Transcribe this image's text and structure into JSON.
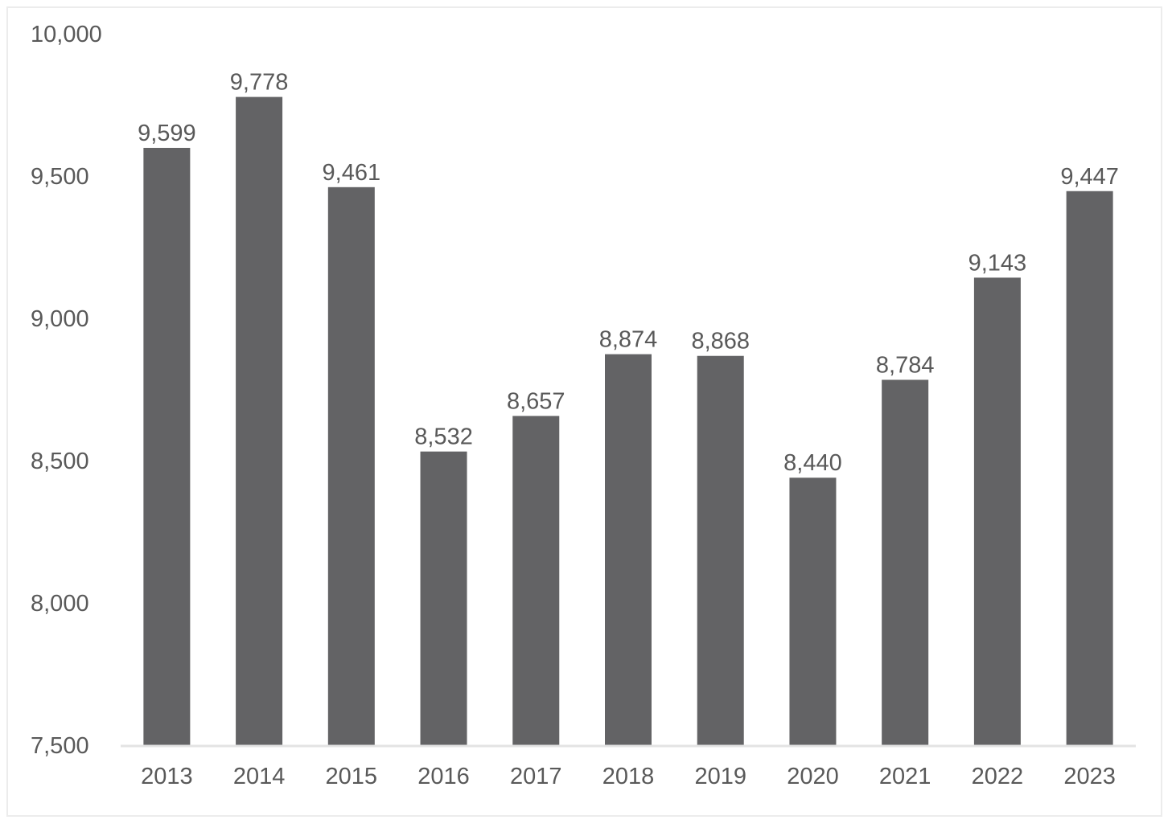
{
  "chart_data": {
    "type": "bar",
    "title": "",
    "xlabel": "",
    "ylabel": "",
    "categories": [
      "2013",
      "2014",
      "2015",
      "2016",
      "2017",
      "2018",
      "2019",
      "2020",
      "2021",
      "2022",
      "2023"
    ],
    "values": [
      9599,
      9778,
      9461,
      8532,
      8657,
      8874,
      8868,
      8440,
      8784,
      9143,
      9447
    ],
    "data_labels": [
      "9,599",
      "9,778",
      "9,461",
      "8,532",
      "8,657",
      "8,874",
      "8,868",
      "8,440",
      "8,784",
      "9,143",
      "9,447"
    ],
    "ylim": [
      7500,
      10000
    ],
    "yticks": [
      7500,
      8000,
      8500,
      9000,
      9500,
      10000
    ],
    "ytick_labels": [
      "7,500",
      "8,000",
      "8,500",
      "9,000",
      "9,500",
      "10,000"
    ],
    "grid": false,
    "legend": "none",
    "bar_color": "#636365",
    "axis_color": "#e3e3e3",
    "text_color": "#595959"
  }
}
